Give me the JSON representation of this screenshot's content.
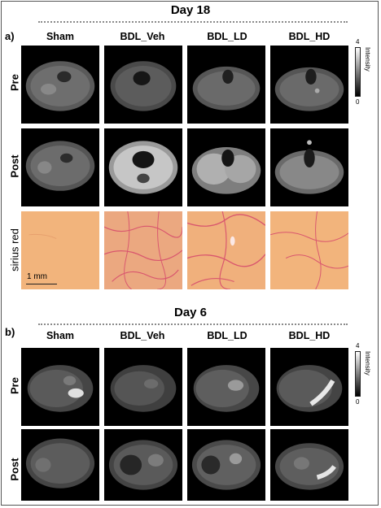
{
  "day18": {
    "title": "Day 18",
    "panel": "a)",
    "columns": [
      "Sham",
      "BDL_Veh",
      "BDL_LD",
      "BDL_HD"
    ],
    "rows": [
      "Pre",
      "Post",
      "sirius red"
    ],
    "colorbar": {
      "max": "4",
      "min": "0",
      "label": "Intensity"
    },
    "scalebar": "1 mm"
  },
  "day6": {
    "title": "Day 6",
    "panel": "b)",
    "columns": [
      "Sham",
      "BDL_Veh",
      "BDL_LD",
      "BDL_HD"
    ],
    "rows": [
      "Pre",
      "Post"
    ],
    "colorbar": {
      "max": "4",
      "min": "0",
      "label": "Intensity"
    }
  },
  "colors": {
    "histo_bg": "#f2b47c",
    "histo_fiber": "#d9566e",
    "frame": "#555555",
    "dotline": "#8a8a8a"
  }
}
